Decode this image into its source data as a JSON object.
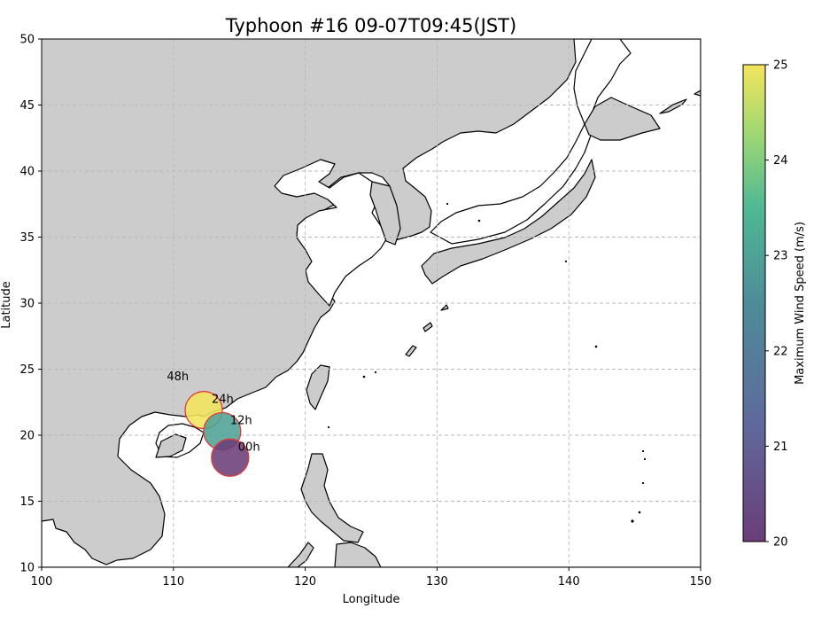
{
  "chart_data": {
    "type": "scatter",
    "title": "Typhoon #16 09-07T09:45(JST)",
    "xlabel": "Longitude",
    "ylabel": "Latitude",
    "xlim": [
      100,
      150
    ],
    "ylim": [
      10,
      50
    ],
    "xticks": [
      100,
      110,
      120,
      130,
      140,
      150
    ],
    "yticks": [
      10,
      15,
      20,
      25,
      30,
      35,
      40,
      45,
      50
    ],
    "grid": true,
    "basemap": "land-gray-ocean-white-coastlines",
    "colormap": "viridis",
    "colorbar": {
      "label": "Maximum Wind Speed (m/s)",
      "range": [
        20,
        25
      ],
      "ticks": [
        20,
        21,
        22,
        23,
        24,
        25
      ]
    },
    "points": [
      {
        "label": "00h",
        "lon": 114.3,
        "lat": 18.3,
        "wind": 20
      },
      {
        "label": "12h",
        "lon": 113.7,
        "lat": 20.3,
        "wind": 23
      },
      {
        "label": "24h",
        "lon": 112.3,
        "lat": 21.9,
        "wind": 25
      },
      {
        "label": "48h",
        "lon": null,
        "lat": null,
        "wind": null,
        "label_lon": 109.5,
        "label_lat": 24.5
      }
    ],
    "marker_edge_color": "#e03a3a"
  }
}
